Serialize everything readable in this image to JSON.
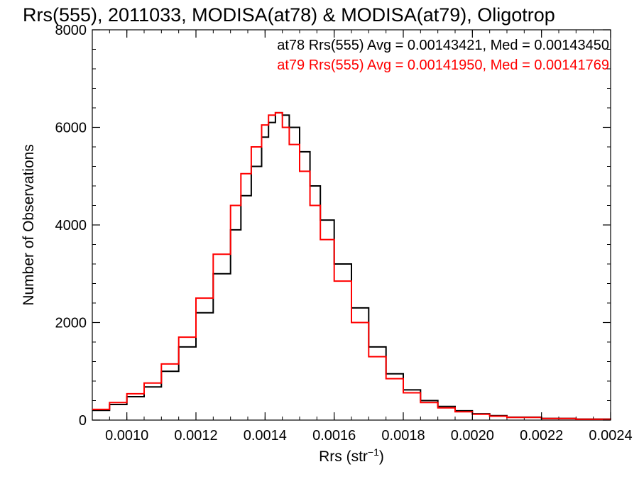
{
  "chart_data": {
    "type": "line",
    "title": "Rrs(555), 2011033, MODISA(at78) & MODISA(at79), Oligotrop",
    "xlabel": "Rrs (str",
    "xlabel_sup": "−1",
    "xlabel_close": ")",
    "ylabel": "Number of Observations",
    "xlim": [
      0.0009,
      0.0024
    ],
    "ylim": [
      0,
      8000
    ],
    "xticks": [
      0.001,
      0.0012,
      0.0014,
      0.0016,
      0.0018,
      0.002,
      0.0022,
      0.0024
    ],
    "xtick_labels": [
      "0.0010",
      "0.0012",
      "0.0014",
      "0.0016",
      "0.0018",
      "0.0020",
      "0.0022",
      "0.0024"
    ],
    "yticks": [
      0,
      2000,
      4000,
      6000,
      8000
    ],
    "ytick_labels": [
      "0",
      "2000",
      "4000",
      "6000",
      "8000"
    ],
    "legend_placement": "top-right",
    "series": [
      {
        "name": "at78",
        "color": "#000000",
        "legend": "at78 Rrs(555) Avg = 0.00143421, Med = 0.00143450",
        "x": [
          0.0009,
          0.00095,
          0.001,
          0.00105,
          0.0011,
          0.00115,
          0.0012,
          0.00125,
          0.0013,
          0.00133,
          0.00136,
          0.00139,
          0.00141,
          0.00143,
          0.00145,
          0.00147,
          0.0015,
          0.00153,
          0.00156,
          0.0016,
          0.00165,
          0.0017,
          0.00175,
          0.0018,
          0.00185,
          0.0019,
          0.00195,
          0.002,
          0.00205,
          0.0021,
          0.0022,
          0.0023,
          0.0024
        ],
        "y": [
          200,
          320,
          480,
          680,
          1000,
          1500,
          2200,
          3000,
          3900,
          4600,
          5200,
          5800,
          6100,
          6300,
          6250,
          6000,
          5500,
          4800,
          4100,
          3200,
          2300,
          1500,
          950,
          620,
          400,
          280,
          190,
          130,
          90,
          60,
          35,
          20,
          10
        ]
      },
      {
        "name": "at79",
        "color": "#ff0000",
        "legend": "at79 Rrs(555) Avg = 0.00141950, Med = 0.00141769",
        "x": [
          0.0009,
          0.00095,
          0.001,
          0.00105,
          0.0011,
          0.00115,
          0.0012,
          0.00125,
          0.0013,
          0.00133,
          0.00136,
          0.00139,
          0.00141,
          0.00143,
          0.00145,
          0.00147,
          0.0015,
          0.00153,
          0.00156,
          0.0016,
          0.00165,
          0.0017,
          0.00175,
          0.0018,
          0.00185,
          0.0019,
          0.00195,
          0.002,
          0.00205,
          0.0021,
          0.0022,
          0.0023,
          0.0024
        ],
        "y": [
          220,
          360,
          540,
          760,
          1150,
          1700,
          2500,
          3400,
          4400,
          5050,
          5600,
          6050,
          6250,
          6300,
          6000,
          5650,
          5100,
          4400,
          3700,
          2850,
          2000,
          1300,
          850,
          560,
          360,
          250,
          170,
          120,
          80,
          55,
          32,
          18,
          8
        ]
      }
    ]
  }
}
